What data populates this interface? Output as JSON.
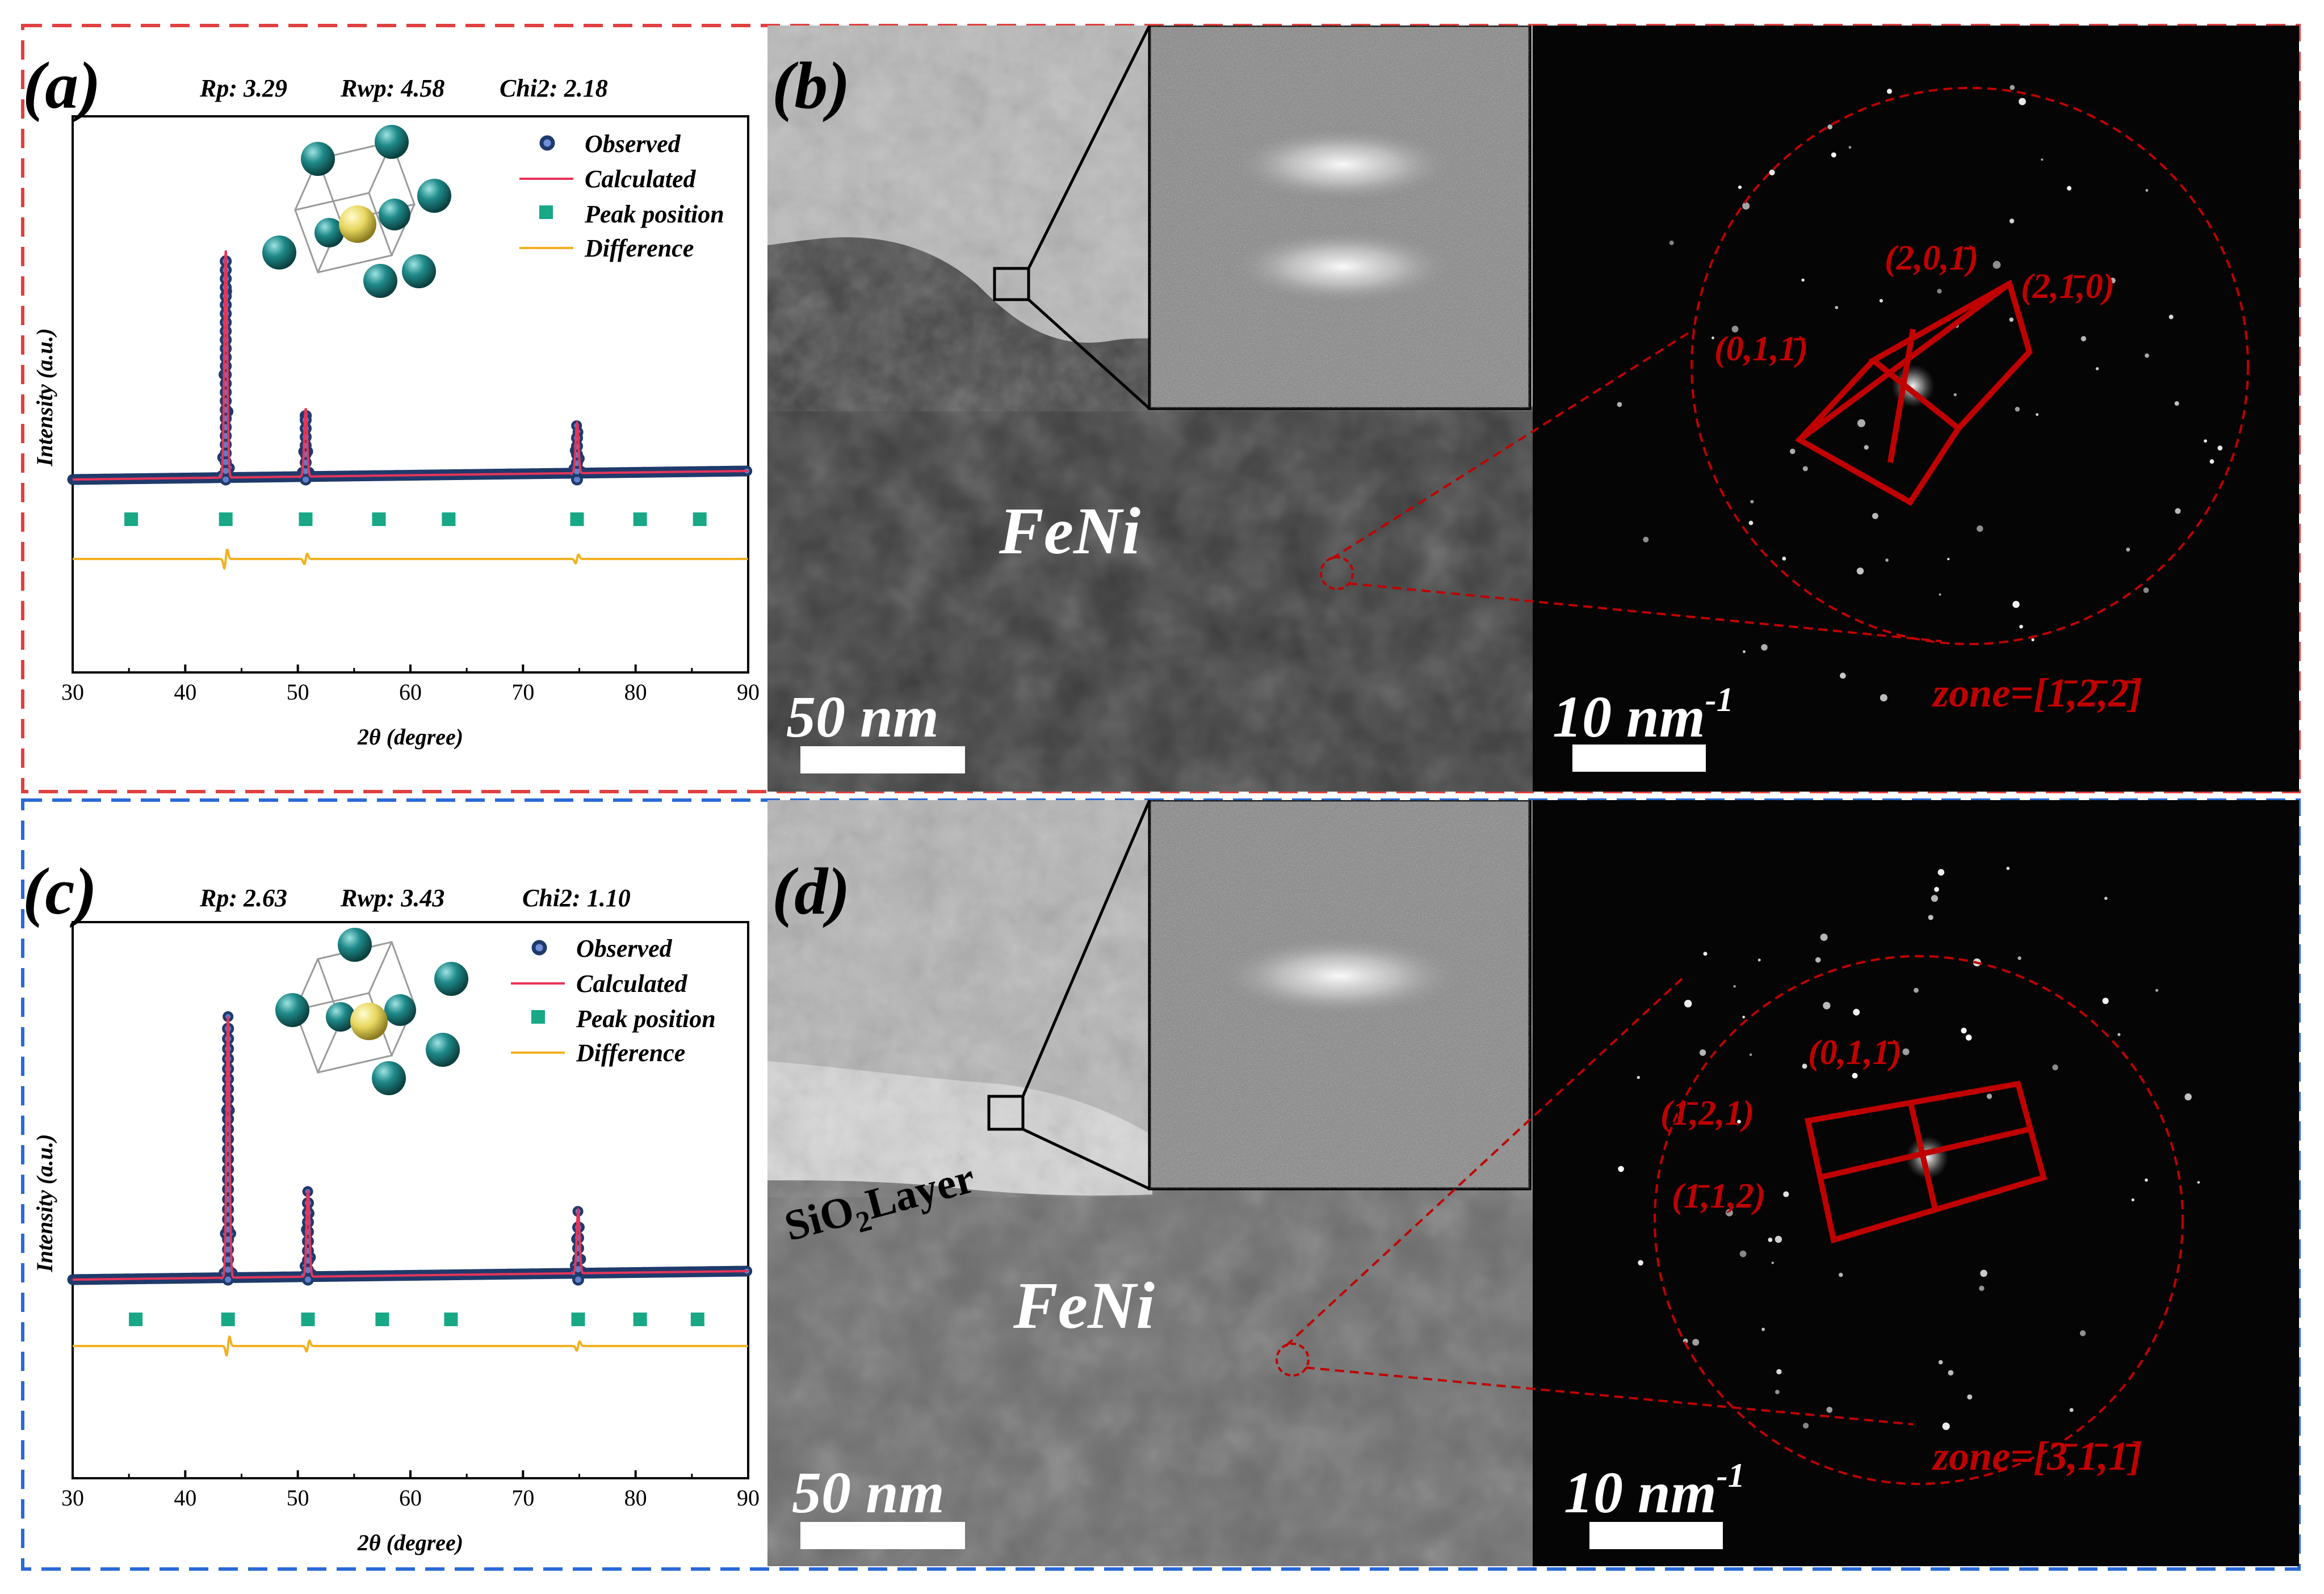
{
  "panels": {
    "a": {
      "label": "(a)",
      "fit": {
        "rp": "Rp:  3.29",
        "rwp": "Rwp:  4.58",
        "chi2": "Chi2:  2.18"
      }
    },
    "b": {
      "label": "(b)",
      "material": "FeNi",
      "scale_left": "50 nm",
      "scale_right_value": "10 nm",
      "scale_right_exp": "-1",
      "miller": [
        "(2,0,1̄)",
        "(2,1̄,0)",
        "(0,1,1̄)"
      ],
      "zone": "zone=[1̄,2̄,2̄]"
    },
    "c": {
      "label": "(c)",
      "fit": {
        "rp": "Rp:  2.63",
        "rwp": "Rwp:  3.43",
        "chi2": "Chi2:  1.10"
      }
    },
    "d": {
      "label": "(d)",
      "material": "FeNi",
      "sio2_main": "SiO",
      "sio2_sub": "2",
      "sio2_rest": "Layer",
      "scale_left": "50 nm",
      "scale_right_value": "10 nm",
      "scale_right_exp": "-1",
      "miller": [
        "(0,1,1̄)",
        "(1̄,2,1)",
        "(1̄,1,2)"
      ],
      "zone": "zone=[3̄,1̄,1̄]"
    }
  },
  "xrd_axis": {
    "xlabel": "2θ (degree)",
    "ylabel": "Intensity (a.u.)",
    "xticks": [
      "30",
      "40",
      "50",
      "60",
      "70",
      "80",
      "90"
    ]
  },
  "legend": {
    "observed": "Observed",
    "calculated": "Calculated",
    "peak": "Peak position",
    "difference": "Difference"
  },
  "colors": {
    "observed": "#1f3a6b",
    "calculated": "#e8345a",
    "peak": "#18a886",
    "difference": "#f2b120",
    "frame_top": "#e04040",
    "frame_bottom": "#2a6ad8",
    "annotation": "#c00000",
    "atom_corner": "#1f8a8a",
    "atom_center": "#e8d860"
  },
  "chart_data": [
    {
      "type": "line",
      "panel": "a",
      "xlim": [
        30,
        90
      ],
      "peaks": [
        {
          "x": 43.6,
          "height": 1.0
        },
        {
          "x": 50.7,
          "height": 0.3
        },
        {
          "x": 74.8,
          "height": 0.22
        }
      ],
      "peak_positions": [
        35.2,
        43.6,
        50.7,
        57.2,
        63.4,
        74.8,
        80.4,
        85.7
      ],
      "series": [
        {
          "name": "Observed",
          "style": "markers"
        },
        {
          "name": "Calculated",
          "style": "line"
        },
        {
          "name": "Peak position",
          "style": "ticks"
        },
        {
          "name": "Difference",
          "style": "line"
        }
      ]
    },
    {
      "type": "line",
      "panel": "c",
      "xlim": [
        30,
        90
      ],
      "peaks": [
        {
          "x": 43.8,
          "height": 1.0
        },
        {
          "x": 50.9,
          "height": 0.33
        },
        {
          "x": 74.9,
          "height": 0.24
        }
      ],
      "peak_positions": [
        35.6,
        43.8,
        50.9,
        57.5,
        63.6,
        74.9,
        80.4,
        85.5
      ],
      "series": [
        {
          "name": "Observed",
          "style": "markers"
        },
        {
          "name": "Calculated",
          "style": "line"
        },
        {
          "name": "Peak position",
          "style": "ticks"
        },
        {
          "name": "Difference",
          "style": "line"
        }
      ]
    }
  ]
}
